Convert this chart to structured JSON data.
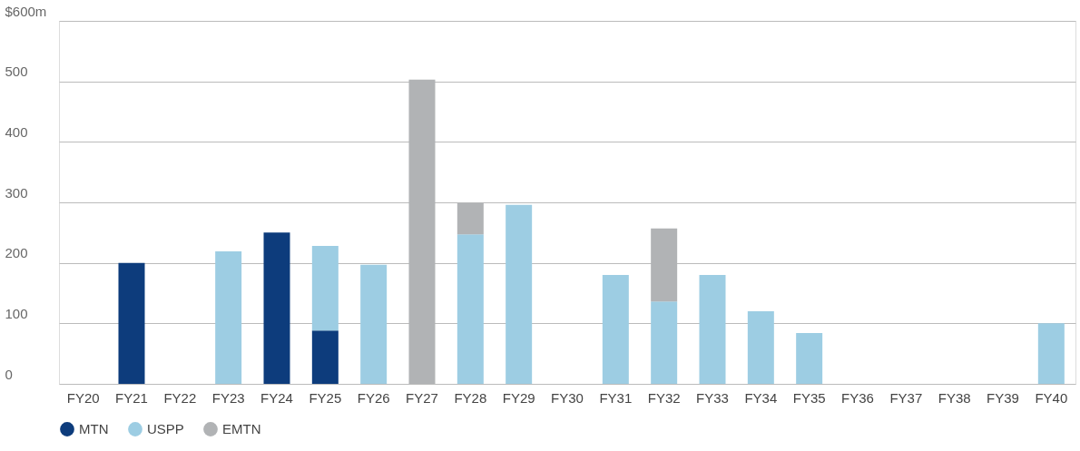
{
  "chart_data": {
    "type": "bar",
    "stacked": true,
    "categories": [
      "FY20",
      "FY21",
      "FY22",
      "FY23",
      "FY24",
      "FY25",
      "FY26",
      "FY27",
      "FY28",
      "FY29",
      "FY30",
      "FY31",
      "FY32",
      "FY33",
      "FY34",
      "FY35",
      "FY36",
      "FY37",
      "FY38",
      "FY39",
      "FY40"
    ],
    "series": [
      {
        "name": "MTN",
        "color": "#0d3c7c",
        "values": [
          null,
          200,
          null,
          null,
          250,
          88,
          null,
          null,
          null,
          null,
          null,
          null,
          null,
          null,
          null,
          null,
          null,
          null,
          null,
          null,
          null
        ]
      },
      {
        "name": "USPP",
        "color": "#9dcde3",
        "values": [
          null,
          null,
          null,
          219,
          null,
          140,
          197,
          null,
          247,
          296,
          null,
          180,
          136,
          180,
          120,
          84,
          null,
          null,
          null,
          null,
          100
        ]
      },
      {
        "name": "EMTN",
        "color": "#b1b3b5",
        "values": [
          null,
          null,
          null,
          null,
          null,
          null,
          null,
          503,
          52,
          null,
          null,
          null,
          121,
          null,
          null,
          null,
          null,
          null,
          null,
          null,
          null
        ]
      }
    ],
    "ylim": [
      0,
      600
    ],
    "yticks": [
      0,
      100,
      200,
      300,
      400,
      500,
      {
        "value": 600,
        "label": "$600m"
      }
    ],
    "grid": "y",
    "legend": "bottom left"
  }
}
